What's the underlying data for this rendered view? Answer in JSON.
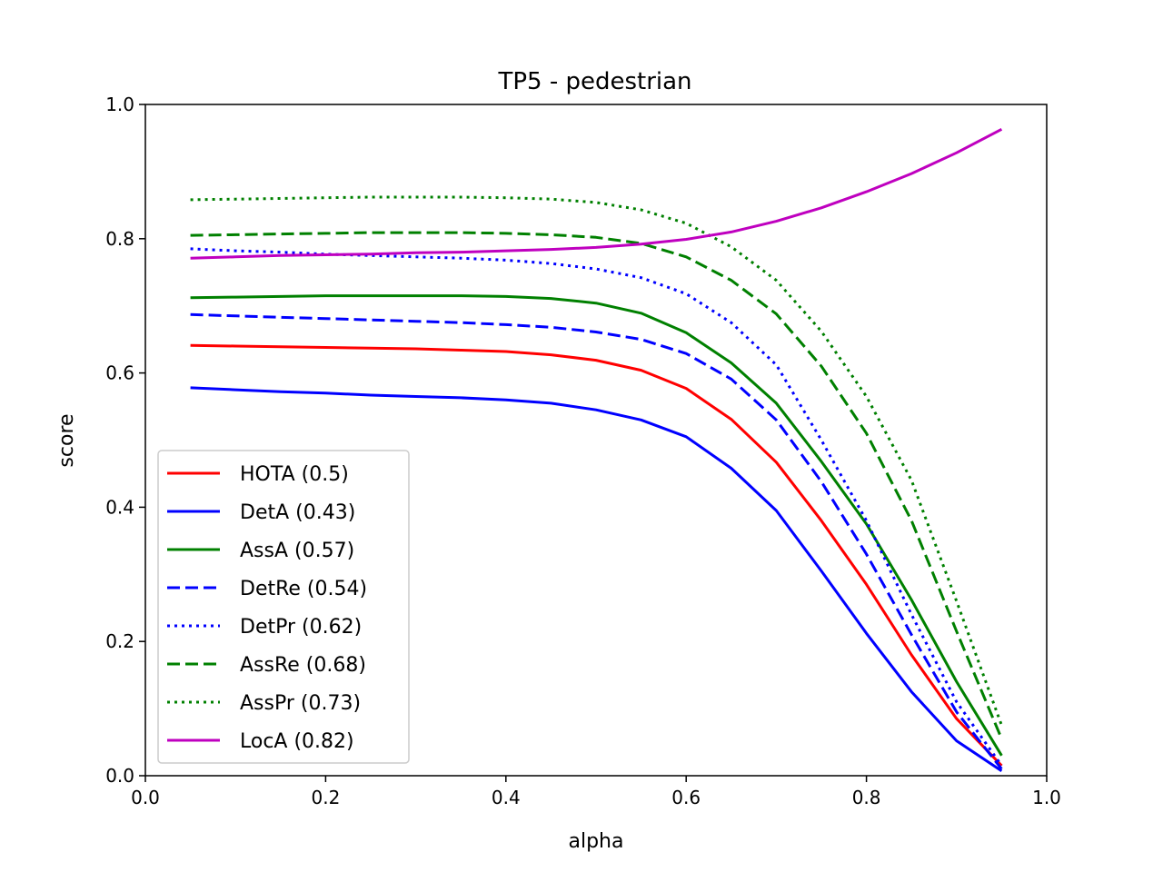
{
  "chart_data": {
    "type": "line",
    "title": "TP5 - pedestrian",
    "xlabel": "alpha",
    "ylabel": "score",
    "xlim": [
      0,
      1
    ],
    "ylim": [
      0,
      1
    ],
    "xticks": [
      "0.0",
      "0.2",
      "0.4",
      "0.6",
      "0.8",
      "1.0"
    ],
    "yticks": [
      "0.0",
      "0.2",
      "0.4",
      "0.6",
      "0.8",
      "1.0"
    ],
    "grid": false,
    "legend_position": "lower-left",
    "x": [
      0.05,
      0.1,
      0.15,
      0.2,
      0.25,
      0.3,
      0.35,
      0.4,
      0.45,
      0.5,
      0.55,
      0.6,
      0.65,
      0.7,
      0.75,
      0.8,
      0.85,
      0.9,
      0.95
    ],
    "series": [
      {
        "name": "HOTA (0.5)",
        "color": "#ff0000",
        "style": "solid",
        "values": [
          0.641,
          0.64,
          0.639,
          0.638,
          0.637,
          0.636,
          0.634,
          0.632,
          0.627,
          0.619,
          0.604,
          0.577,
          0.531,
          0.467,
          0.38,
          0.285,
          0.18,
          0.085,
          0.015
        ]
      },
      {
        "name": "DetA (0.43)",
        "color": "#0000ff",
        "style": "solid",
        "values": [
          0.578,
          0.575,
          0.572,
          0.57,
          0.567,
          0.565,
          0.563,
          0.56,
          0.555,
          0.545,
          0.53,
          0.505,
          0.458,
          0.395,
          0.305,
          0.212,
          0.125,
          0.052,
          0.007
        ]
      },
      {
        "name": "AssA (0.57)",
        "color": "#008000",
        "style": "solid",
        "values": [
          0.712,
          0.713,
          0.714,
          0.715,
          0.715,
          0.715,
          0.715,
          0.714,
          0.711,
          0.704,
          0.689,
          0.66,
          0.615,
          0.555,
          0.468,
          0.375,
          0.262,
          0.14,
          0.03
        ]
      },
      {
        "name": "DetRe (0.54)",
        "color": "#0000ff",
        "style": "dashed",
        "values": [
          0.687,
          0.685,
          0.683,
          0.681,
          0.679,
          0.677,
          0.675,
          0.672,
          0.668,
          0.661,
          0.65,
          0.629,
          0.591,
          0.53,
          0.438,
          0.33,
          0.21,
          0.095,
          0.01
        ]
      },
      {
        "name": "DetPr (0.62)",
        "color": "#0000ff",
        "style": "dotted",
        "values": [
          0.785,
          0.782,
          0.78,
          0.777,
          0.775,
          0.773,
          0.771,
          0.768,
          0.763,
          0.755,
          0.742,
          0.718,
          0.675,
          0.612,
          0.5,
          0.38,
          0.24,
          0.11,
          0.015
        ]
      },
      {
        "name": "AssRe (0.68)",
        "color": "#008000",
        "style": "dashed",
        "values": [
          0.805,
          0.806,
          0.807,
          0.808,
          0.809,
          0.809,
          0.809,
          0.808,
          0.806,
          0.802,
          0.793,
          0.773,
          0.738,
          0.688,
          0.61,
          0.51,
          0.38,
          0.215,
          0.055
        ]
      },
      {
        "name": "AssPr (0.73)",
        "color": "#008000",
        "style": "dotted",
        "values": [
          0.858,
          0.859,
          0.86,
          0.861,
          0.862,
          0.862,
          0.862,
          0.861,
          0.859,
          0.854,
          0.843,
          0.823,
          0.788,
          0.738,
          0.662,
          0.565,
          0.44,
          0.26,
          0.075
        ]
      },
      {
        "name": "LocA (0.82)",
        "color": "#bf00bf",
        "style": "solid",
        "values": [
          0.771,
          0.773,
          0.775,
          0.776,
          0.777,
          0.779,
          0.78,
          0.782,
          0.784,
          0.787,
          0.792,
          0.799,
          0.81,
          0.826,
          0.846,
          0.87,
          0.897,
          0.928,
          0.963
        ]
      }
    ]
  }
}
